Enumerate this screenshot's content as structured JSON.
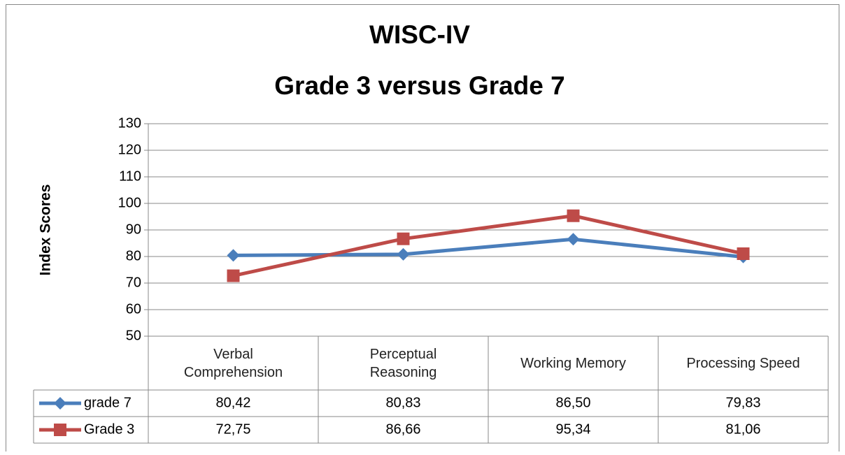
{
  "chart_data": {
    "type": "line",
    "title": "WISC-IV",
    "subtitle": "Grade 3 versus Grade 7",
    "y_label": "Index Scores",
    "categories": [
      "Verbal Comprehension",
      "Perceptual Reasoning",
      "Working Memory",
      "Processing Speed"
    ],
    "series": [
      {
        "name": "grade 7",
        "color": "#4a7ebb",
        "marker": "diamond",
        "values": [
          80.42,
          80.83,
          86.5,
          79.83
        ],
        "value_labels": [
          "80,42",
          "80,83",
          "86,50",
          "79,83"
        ]
      },
      {
        "name": "Grade 3",
        "color": "#be4b48",
        "marker": "square",
        "values": [
          72.75,
          86.66,
          95.34,
          81.06
        ],
        "value_labels": [
          "72,75",
          "86,66",
          "95,34",
          "81,06"
        ]
      }
    ],
    "ylim": [
      50,
      130
    ],
    "yticks": [
      50,
      60,
      70,
      80,
      90,
      100,
      110,
      120,
      130
    ],
    "grid": true
  }
}
